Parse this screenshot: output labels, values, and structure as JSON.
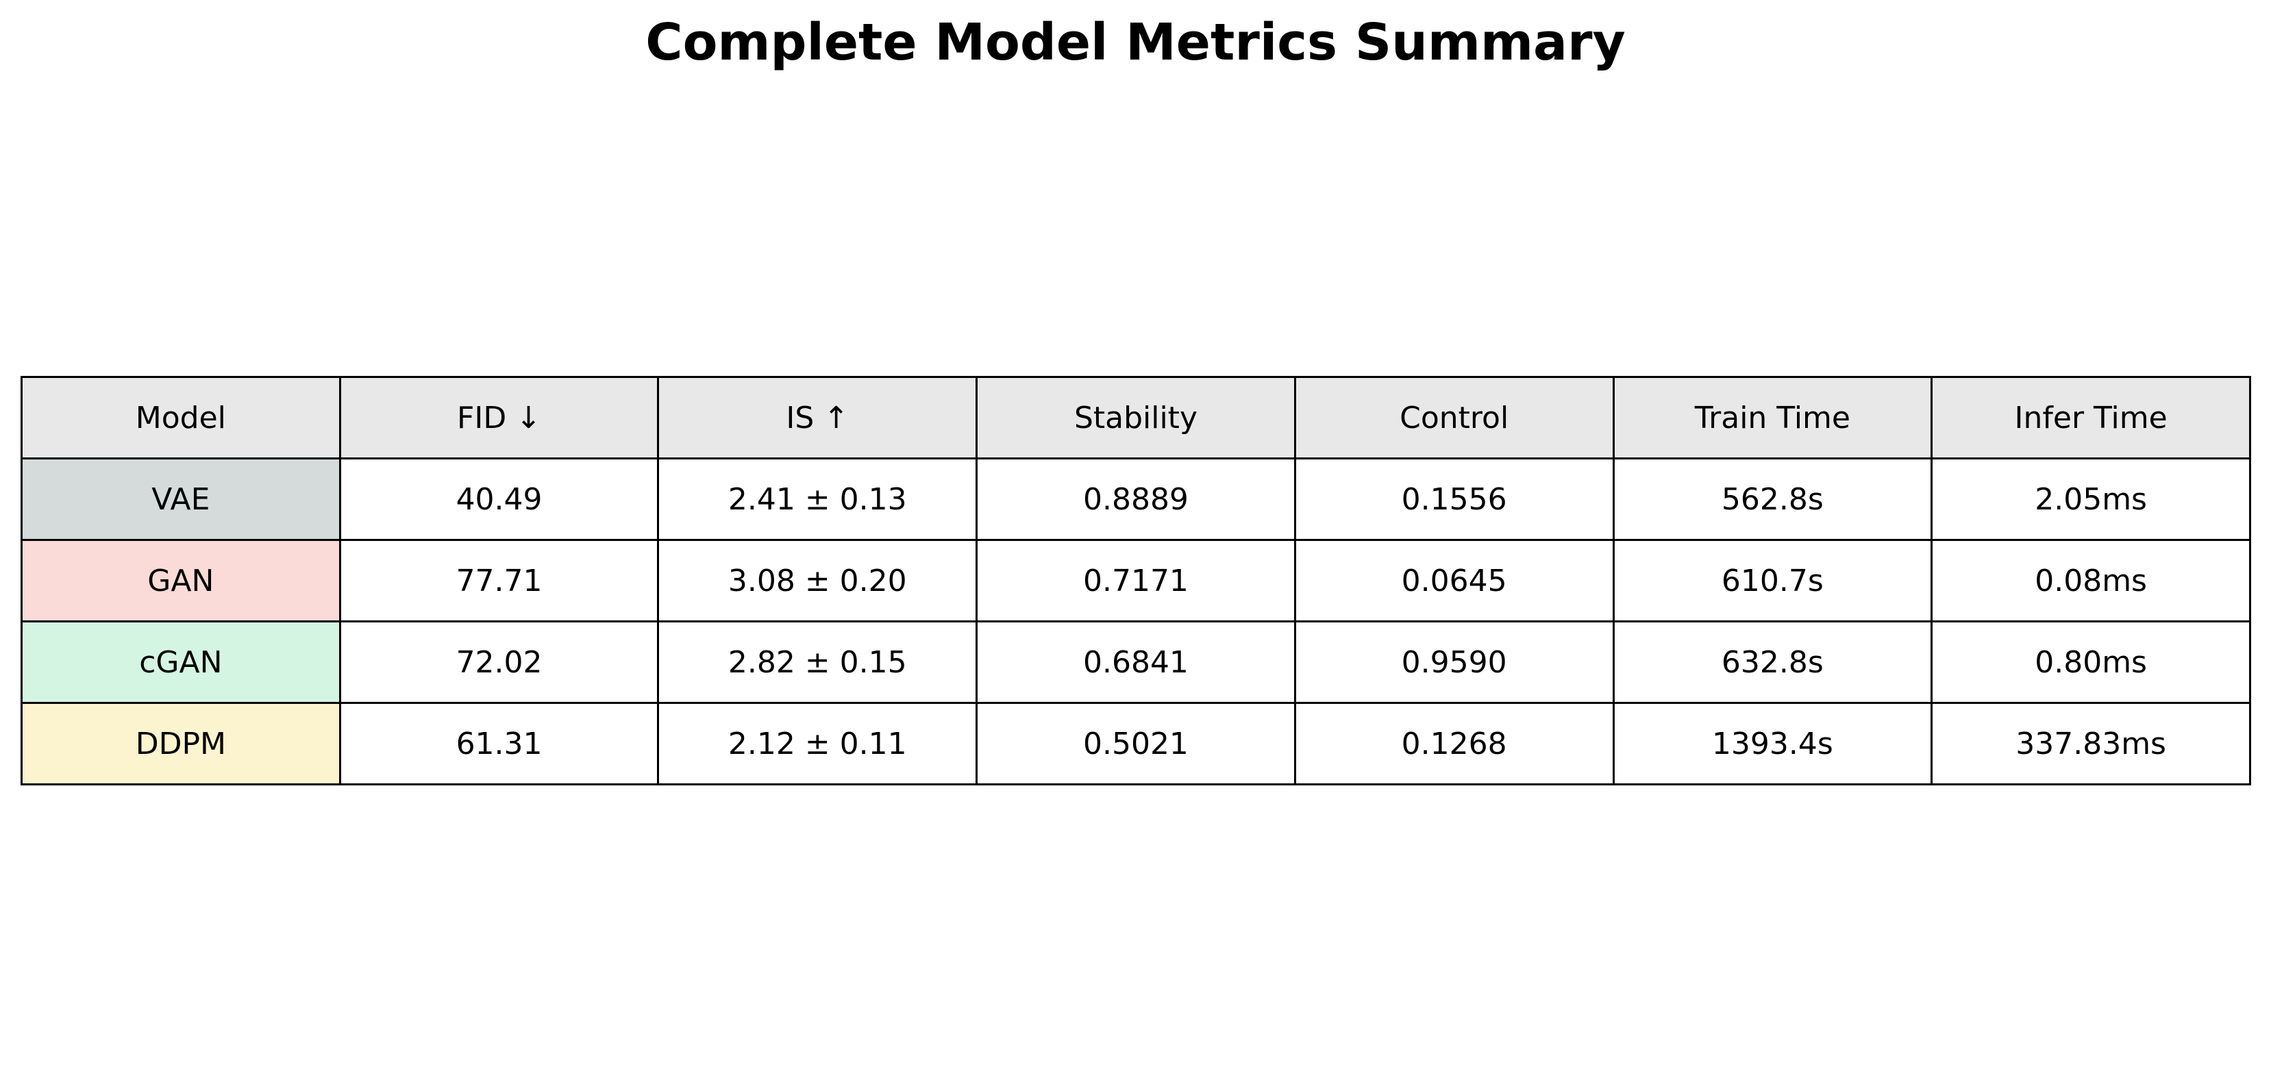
{
  "chart_data": {
    "type": "table",
    "title": "Complete Model Metrics Summary",
    "header_color": "#e8e8e8",
    "columns": [
      "Model",
      "FID ↓",
      "IS ↑",
      "Stability",
      "Control",
      "Train Time",
      "Infer Time"
    ],
    "rows": [
      {
        "model": "VAE",
        "color": "#d5dbdb",
        "cells": [
          "40.49",
          "2.41 ± 0.13",
          "0.8889",
          "0.1556",
          "562.8s",
          "2.05ms"
        ]
      },
      {
        "model": "GAN",
        "color": "#fadbd8",
        "cells": [
          "77.71",
          "3.08 ± 0.20",
          "0.7171",
          "0.0645",
          "610.7s",
          "0.08ms"
        ]
      },
      {
        "model": "cGAN",
        "color": "#d5f5e3",
        "cells": [
          "72.02",
          "2.82 ± 0.15",
          "0.6841",
          "0.9590",
          "632.8s",
          "0.80ms"
        ]
      },
      {
        "model": "DDPM",
        "color": "#fcf3cf",
        "cells": [
          "61.31",
          "2.12 ± 0.11",
          "0.5021",
          "0.1268",
          "1393.4s",
          "337.83ms"
        ]
      }
    ]
  }
}
